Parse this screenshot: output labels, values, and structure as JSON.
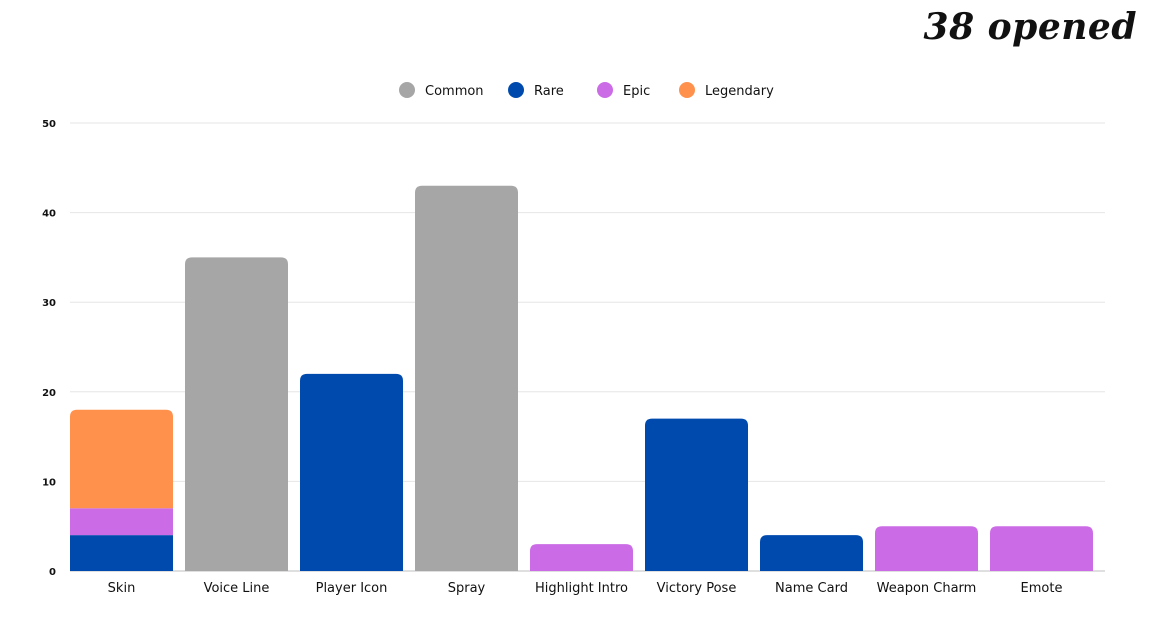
{
  "header": {
    "opened_label": "38 opened"
  },
  "chart_data": {
    "type": "bar",
    "stacked": true,
    "categories": [
      "Skin",
      "Voice Line",
      "Player Icon",
      "Spray",
      "Highlight Intro",
      "Victory Pose",
      "Name Card",
      "Weapon Charm",
      "Emote"
    ],
    "series": [
      {
        "name": "Common",
        "color": "#a6a6a6",
        "values": [
          0,
          35,
          0,
          43,
          0,
          0,
          0,
          0,
          0
        ]
      },
      {
        "name": "Rare",
        "color": "#004aad",
        "values": [
          4,
          0,
          22,
          0,
          0,
          17,
          4,
          0,
          0
        ]
      },
      {
        "name": "Epic",
        "color": "#cb6ce6",
        "values": [
          3,
          0,
          0,
          0,
          3,
          0,
          0,
          5,
          5
        ]
      },
      {
        "name": "Legendary",
        "color": "#ff914d",
        "values": [
          11,
          0,
          0,
          0,
          0,
          0,
          0,
          0,
          0
        ]
      }
    ],
    "ylim": [
      0,
      50
    ],
    "yticks": [
      0,
      10,
      20,
      30,
      40,
      50
    ],
    "grid": true,
    "legend_position": "top-center"
  }
}
